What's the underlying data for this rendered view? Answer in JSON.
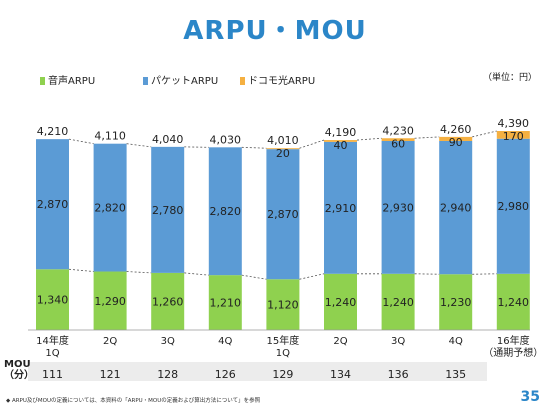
{
  "title": "ARPU・MOU",
  "unit_label": "（単位：円）",
  "legend": [
    {
      "label": "音声ARPU",
      "color": "#8fd14f"
    },
    {
      "label": "パケットARPU",
      "color": "#5b9bd5"
    },
    {
      "label": "ドコモ光ARPU",
      "color": "#f5b041"
    }
  ],
  "chart_data": {
    "type": "bar",
    "stacked": true,
    "categories": [
      "14年度 1Q",
      "2Q",
      "3Q",
      "4Q",
      "15年度 1Q",
      "2Q",
      "3Q",
      "4Q",
      "16年度 （通期予想）"
    ],
    "series": [
      {
        "name": "音声ARPU",
        "values": [
          1340,
          1290,
          1260,
          1210,
          1120,
          1240,
          1240,
          1230,
          1240
        ]
      },
      {
        "name": "パケットARPU",
        "values": [
          2870,
          2820,
          2780,
          2820,
          2870,
          2910,
          2930,
          2940,
          2980
        ]
      },
      {
        "name": "ドコモ光ARPU",
        "values": [
          0,
          0,
          0,
          0,
          20,
          40,
          60,
          90,
          170
        ]
      }
    ],
    "totals": [
      "4,210",
      "4,110",
      "4,040",
      "4,030",
      "4,010",
      "4,190",
      "4,230",
      "4,260",
      "4,390"
    ],
    "voice_labels": [
      "1,340",
      "1,290",
      "1,260",
      "1,210",
      "1,120",
      "1,240",
      "1,240",
      "1,230",
      "1,240"
    ],
    "packet_labels": [
      "2,870",
      "2,820",
      "2,780",
      "2,820",
      "2,870",
      "2,910",
      "2,930",
      "2,940",
      "2,980"
    ],
    "hikari_labels": [
      "",
      "",
      "",
      "",
      "20",
      "40",
      "60",
      "90",
      "170"
    ],
    "ylim": [
      0,
      4390
    ]
  },
  "mou": {
    "label_line1": "MOU",
    "label_line2": "（分）",
    "values": [
      "111",
      "121",
      "128",
      "126",
      "129",
      "134",
      "136",
      "135"
    ]
  },
  "footnote": "◆ ARPU及びMOUの定義については、本資料の「ARPU・MOUの定義および算出方法について」を参照",
  "page_number": "35"
}
